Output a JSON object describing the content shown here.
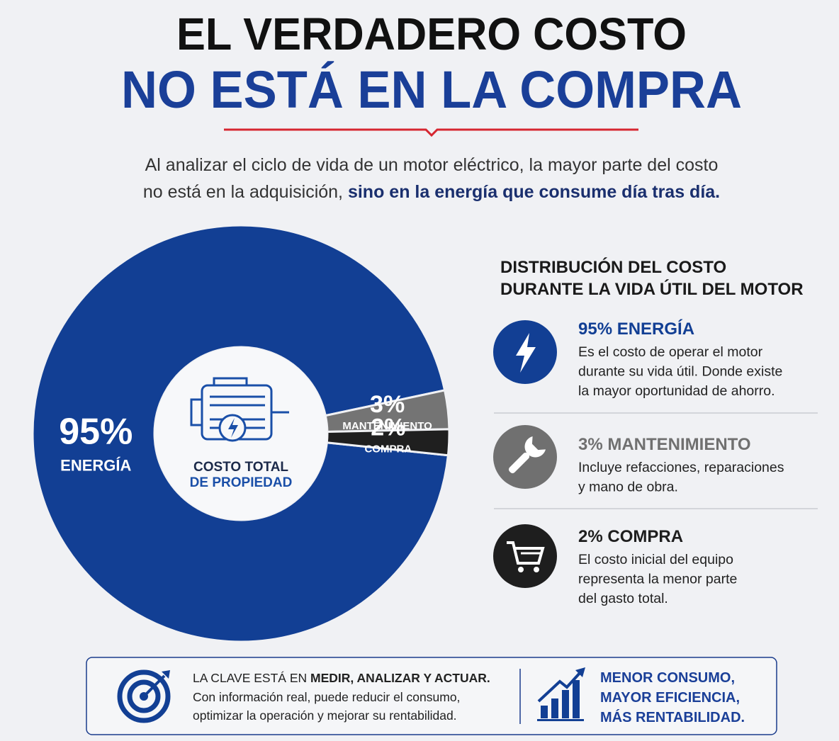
{
  "header": {
    "title_line1": "EL VERDADERO COSTO",
    "title_line2": "NO ESTÁ EN LA COMPRA",
    "intro_line1": "Al analizar el ciclo de vida de un motor eléctrico, la mayor parte del costo",
    "intro_line2": "no está en la adquisición, ",
    "intro_line2_bold": "sino en la energía que consume día tras día."
  },
  "chart_data": {
    "type": "pie",
    "categories": [
      "ENERGÍA",
      "MANTENIMIENTO",
      "COMPRA"
    ],
    "values": [
      95,
      3,
      2
    ],
    "value_labels": [
      "95%",
      "3%",
      "2%"
    ],
    "colors": [
      "#123f94",
      "#747474",
      "#1f1f1f"
    ],
    "center_label": [
      "COSTO TOTAL",
      "DE PROPIEDAD"
    ]
  },
  "panel": {
    "heading": [
      "DISTRIBUCIÓN DEL COSTO",
      "DURANTE LA VIDA ÚTIL DEL MOTOR"
    ],
    "items": [
      {
        "title": "95% ENERGÍA",
        "lines": [
          "Es el costo de operar el motor",
          "durante su vida útil. Donde existe",
          "la mayor oportunidad de ahorro."
        ]
      },
      {
        "title": "3% MANTENIMIENTO",
        "lines": [
          "Incluye refacciones, reparaciones",
          "y mano de obra."
        ]
      },
      {
        "title": "2% COMPRA",
        "lines": [
          "El costo inicial del equipo",
          "representa la menor parte",
          "del gasto total."
        ]
      }
    ]
  },
  "footer": {
    "lead": "LA CLAVE ESTÁ EN ",
    "lead_bold": "MEDIR, ANALIZAR Y ACTUAR.",
    "lines": [
      "Con información real, puede reducir el consumo,",
      "optimizar la operación y mejorar su rentabilidad."
    ],
    "slogan": [
      "MENOR CONSUMO,",
      "MAYOR EFICIENCIA,",
      "MÁS RENTABILIDAD."
    ]
  }
}
